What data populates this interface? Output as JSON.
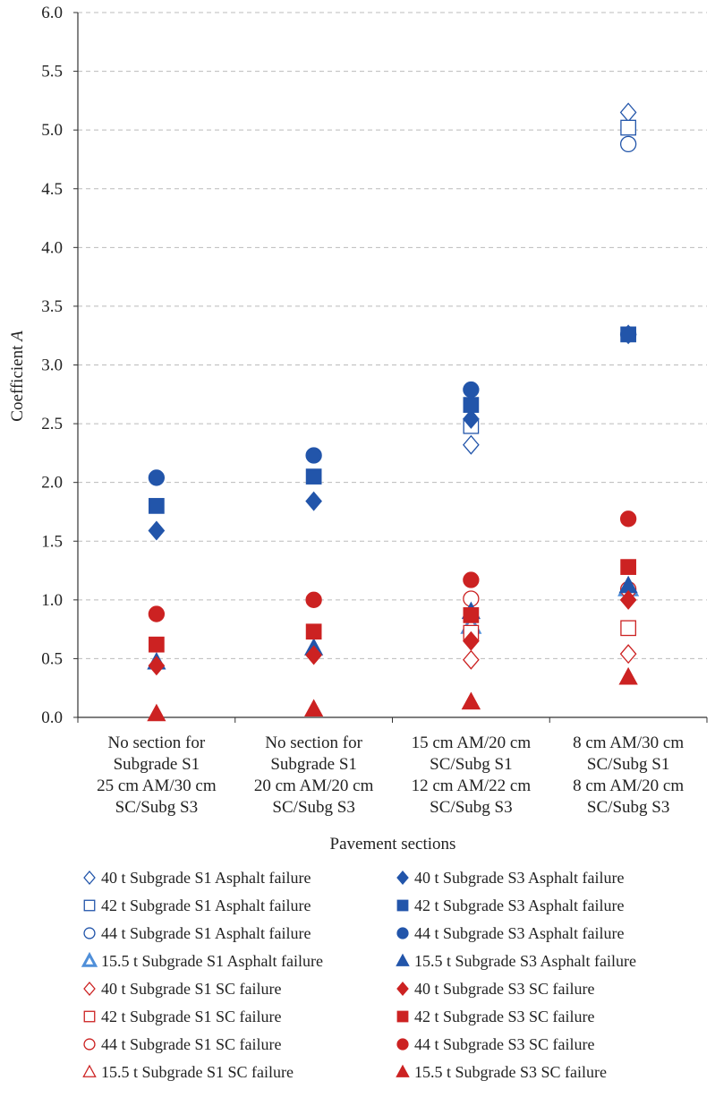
{
  "chart_data": {
    "type": "scatter",
    "title": "",
    "xlabel": "Pavement sections",
    "ylabel_main": "Coefficient ",
    "ylabel_italic": "A",
    "ylim": [
      0,
      6
    ],
    "yticks": [
      "0.0",
      "0.5",
      "1.0",
      "1.5",
      "2.0",
      "2.5",
      "3.0",
      "3.5",
      "4.0",
      "4.5",
      "5.0",
      "5.5",
      "6.0"
    ],
    "grid": "horizontal dashed",
    "legend_position": "bottom",
    "categories": [
      [
        "No section for",
        "Subgrade S1",
        "25 cm AM/30 cm",
        "SC/Subg S3"
      ],
      [
        "No section for",
        "Subgrade S1",
        "20 cm AM/20 cm",
        "SC/Subg S3"
      ],
      [
        "15 cm AM/20 cm",
        "SC/Subg S1",
        "12 cm AM/22 cm",
        "SC/Subg S3"
      ],
      [
        "8 cm AM/30 cm",
        "SC/Subg S1",
        "8 cm AM/20 cm",
        "SC/Subg S3"
      ]
    ],
    "colors": {
      "blue": "#2255aa",
      "red": "#cc2222",
      "grid": "#bbbbbb",
      "axis": "#333333"
    },
    "series": [
      {
        "name": "40 t Subgrade S1 Asphalt failure",
        "marker": "diamond",
        "filled": false,
        "color": "#2255aa",
        "values": [
          null,
          null,
          2.32,
          5.15
        ]
      },
      {
        "name": "42 t Subgrade S1 Asphalt failure",
        "marker": "square",
        "filled": false,
        "color": "#2255aa",
        "values": [
          null,
          null,
          2.48,
          5.02
        ]
      },
      {
        "name": "44 t Subgrade S1 Asphalt failure",
        "marker": "circle",
        "filled": false,
        "color": "#2255aa",
        "values": [
          null,
          null,
          null,
          4.88
        ]
      },
      {
        "name": "15.5 t Subgrade S1 Asphalt failure",
        "marker": "triangle",
        "filled": "thick",
        "color": "#4f8fd9",
        "values": [
          null,
          null,
          0.78,
          1.1
        ]
      },
      {
        "name": "40 t Subgrade S1 SC failure",
        "marker": "diamond",
        "filled": false,
        "color": "#cc2222",
        "values": [
          null,
          null,
          0.49,
          0.54
        ]
      },
      {
        "name": "42 t Subgrade S1 SC failure",
        "marker": "square",
        "filled": false,
        "color": "#cc2222",
        "values": [
          null,
          null,
          0.72,
          0.76
        ]
      },
      {
        "name": "44 t Subgrade S1 SC failure",
        "marker": "circle",
        "filled": false,
        "color": "#cc2222",
        "values": [
          null,
          null,
          1.01,
          1.09
        ]
      },
      {
        "name": "15.5 t Subgrade S1 SC failure",
        "marker": "triangle",
        "filled": false,
        "color": "#cc2222",
        "values": [
          null,
          null,
          0.13,
          0.34
        ]
      },
      {
        "name": "40 t Subgrade S3 Asphalt failure",
        "marker": "diamond",
        "filled": true,
        "color": "#2255aa",
        "values": [
          1.59,
          1.84,
          2.54,
          3.26
        ]
      },
      {
        "name": "42 t Subgrade S3 Asphalt failure",
        "marker": "square",
        "filled": true,
        "color": "#2255aa",
        "values": [
          1.8,
          2.05,
          2.66,
          3.26
        ]
      },
      {
        "name": "44 t Subgrade S3 Asphalt failure",
        "marker": "circle",
        "filled": true,
        "color": "#2255aa",
        "values": [
          2.04,
          2.23,
          2.79,
          3.26
        ]
      },
      {
        "name": "15.5 t Subgrade S3 Asphalt failure",
        "marker": "triangle",
        "filled": true,
        "color": "#2255aa",
        "values": [
          0.47,
          0.59,
          0.9,
          1.12
        ]
      },
      {
        "name": "40 t Subgrade S3 SC failure",
        "marker": "diamond",
        "filled": true,
        "color": "#cc2222",
        "values": [
          0.44,
          0.53,
          0.65,
          1.0
        ]
      },
      {
        "name": "42 t Subgrade S3 SC failure",
        "marker": "square",
        "filled": true,
        "color": "#cc2222",
        "values": [
          0.62,
          0.73,
          0.87,
          1.28
        ]
      },
      {
        "name": "44 t Subgrade S3 SC failure",
        "marker": "circle",
        "filled": true,
        "color": "#cc2222",
        "values": [
          0.88,
          1.0,
          1.17,
          1.69
        ]
      },
      {
        "name": "15.5 t Subgrade S3 SC failure",
        "marker": "triangle",
        "filled": true,
        "color": "#cc2222",
        "values": [
          0.03,
          0.07,
          0.13,
          0.34
        ]
      }
    ]
  }
}
